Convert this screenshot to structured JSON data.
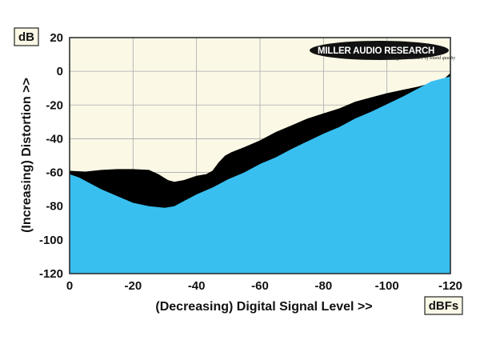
{
  "chart_data": {
    "type": "area",
    "title": "",
    "xlabel": "(Decreasing) Digital Signal Level >>",
    "ylabel": "(Increasing) Distortion >>",
    "y_unit": "dB",
    "x_unit": "dBFs",
    "xlim": [
      0,
      -120
    ],
    "ylim": [
      -120,
      20
    ],
    "x_ticks": [
      0,
      -20,
      -40,
      -60,
      -80,
      -100,
      -120
    ],
    "y_ticks": [
      20,
      0,
      -20,
      -40,
      -60,
      -80,
      -100,
      -120
    ],
    "x_tick_labels": [
      "0",
      "-20",
      "-40",
      "-60",
      "-80",
      "-100",
      "-120"
    ],
    "y_tick_labels": [
      "20",
      "0",
      "-20",
      "-40",
      "-60",
      "-80",
      "-100",
      "-120"
    ],
    "grid": true,
    "series": [
      {
        "role": "upper",
        "color": "#000000",
        "x": [
          0,
          -5,
          -10,
          -15,
          -20,
          -25,
          -28,
          -31,
          -33,
          -36,
          -40,
          -43,
          -45,
          -47,
          -49,
          -51,
          -55,
          -60,
          -65,
          -70,
          -75,
          -80,
          -85,
          -90,
          -95,
          -100,
          -105,
          -110,
          -115,
          -118,
          -120
        ],
        "y": [
          -59,
          -59.5,
          -58.5,
          -58,
          -58,
          -58.5,
          -61,
          -64.5,
          -65.5,
          -64.5,
          -62,
          -61,
          -59,
          -54,
          -50,
          -48,
          -45,
          -41,
          -36,
          -32,
          -28,
          -25,
          -22,
          -18,
          -15.5,
          -13,
          -11,
          -9,
          -6.5,
          -4.5,
          -1
        ]
      },
      {
        "role": "lower",
        "color": "#38bff0",
        "x": [
          0,
          -3,
          -6,
          -10,
          -15,
          -20,
          -25,
          -30,
          -33,
          -36,
          -40,
          -45,
          -50,
          -55,
          -60,
          -65,
          -70,
          -75,
          -80,
          -85,
          -90,
          -95,
          -100,
          -105,
          -110,
          -114,
          -117,
          -120
        ],
        "y": [
          -61,
          -63,
          -66,
          -70,
          -74,
          -78,
          -80,
          -81,
          -80,
          -77,
          -73,
          -69,
          -64,
          -60,
          -55,
          -51,
          -46,
          -41.5,
          -37,
          -33,
          -28,
          -24,
          -19.5,
          -15,
          -10,
          -6,
          -4.5,
          -3
        ]
      }
    ]
  },
  "colors": {
    "plot_background": "#fbf8e6",
    "grid": "#aaaaaa",
    "frame": "#222222"
  },
  "logo": {
    "name": "MILLER AUDIO RESEARCH",
    "tagline": "Setting the measure of sound quality"
  }
}
